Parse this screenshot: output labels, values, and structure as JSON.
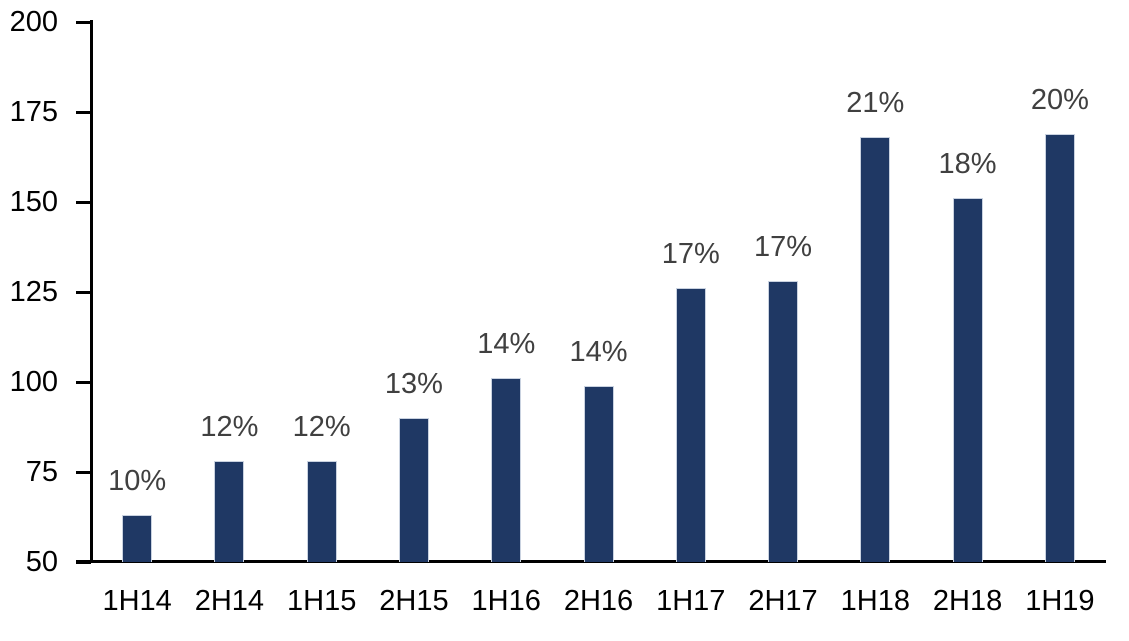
{
  "chart_data": {
    "type": "bar",
    "title": "",
    "xlabel": "",
    "ylabel": "",
    "categories": [
      "1H14",
      "2H14",
      "1H15",
      "2H15",
      "1H16",
      "2H16",
      "1H17",
      "2H17",
      "1H18",
      "2H18",
      "1H19"
    ],
    "values": [
      63,
      78,
      78,
      90,
      101,
      99,
      126,
      128,
      168,
      151,
      169
    ],
    "bar_labels": [
      "10%",
      "12%",
      "12%",
      "13%",
      "14%",
      "14%",
      "17%",
      "17%",
      "21%",
      "18%",
      "20%"
    ],
    "ylim": [
      50,
      200
    ],
    "y_ticks": [
      200,
      175,
      150,
      125,
      100,
      75,
      50
    ],
    "grid": false,
    "legend": false,
    "colors": {
      "bar_fill": "#1F3864",
      "bar_border": "#C9D2E0",
      "data_label": "#404040",
      "axis": "#000000"
    }
  }
}
